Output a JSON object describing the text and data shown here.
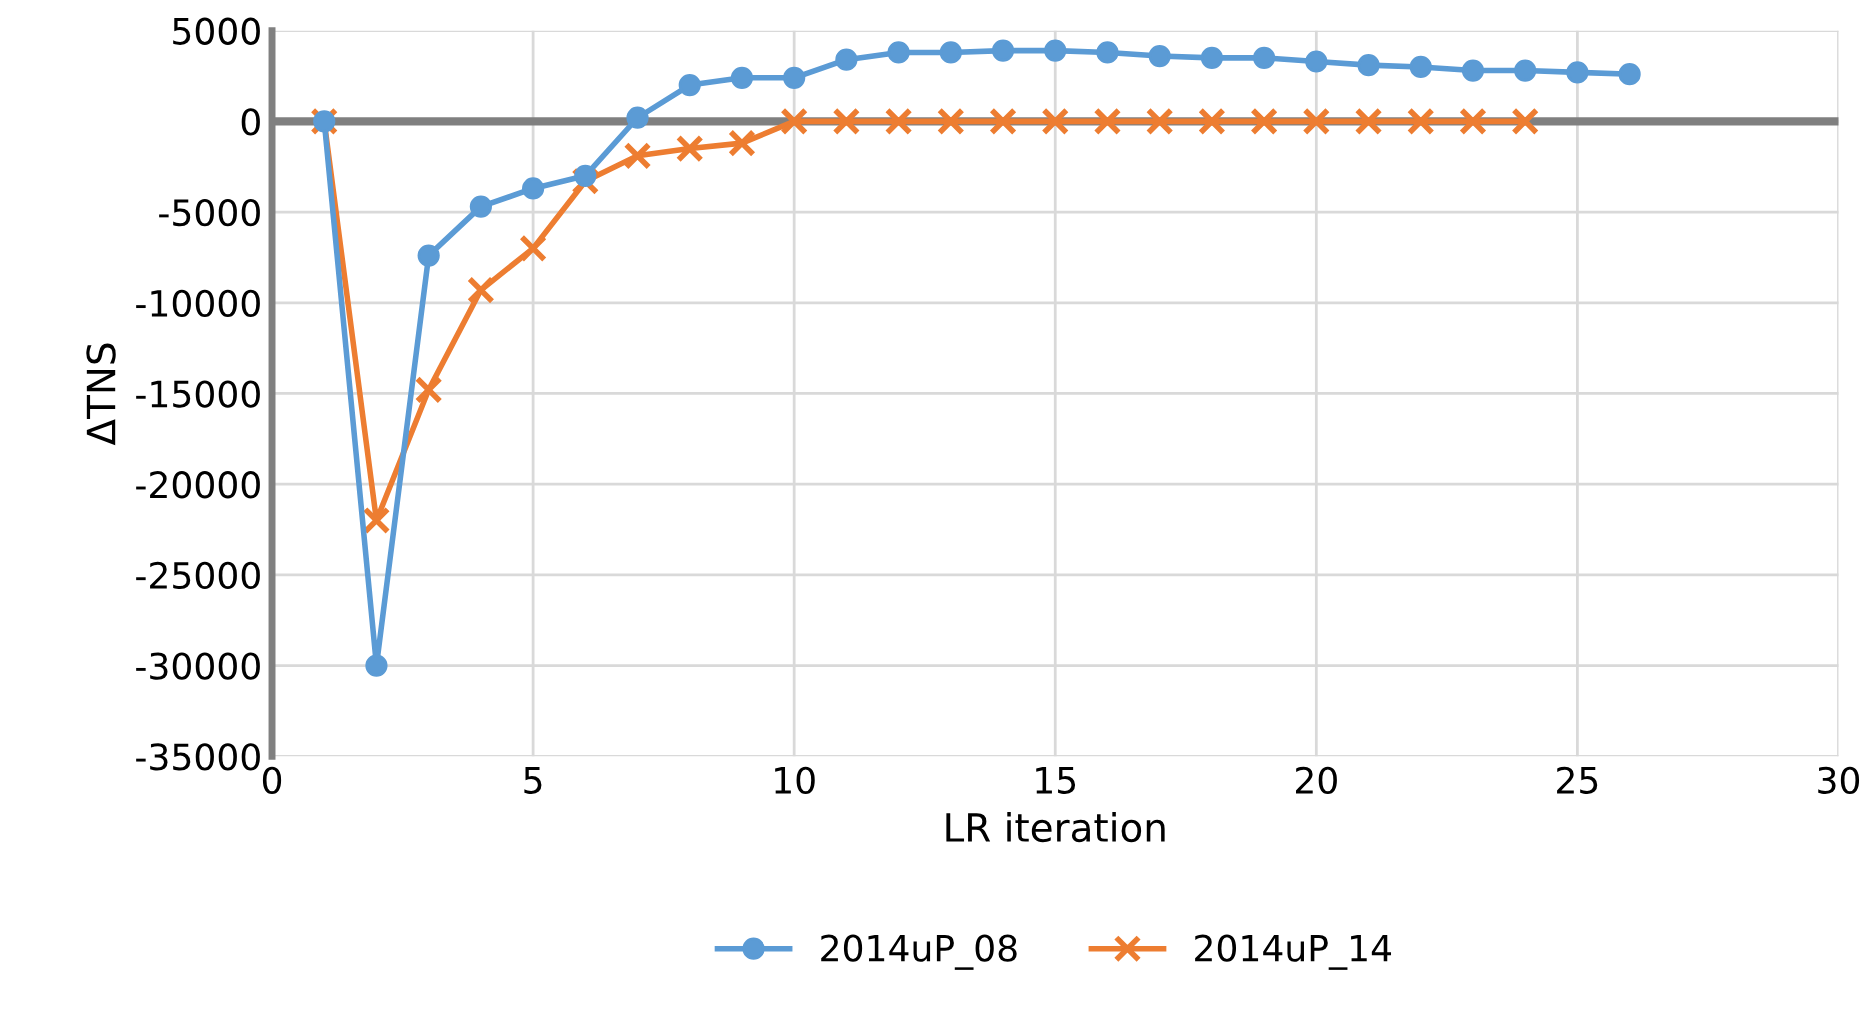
{
  "chart_data": {
    "type": "line",
    "xlabel": "LR iteration",
    "ylabel": "ΔTNS",
    "xlim": [
      0,
      30
    ],
    "xticks": [
      0,
      5,
      10,
      15,
      20,
      25,
      30
    ],
    "ylim": [
      -35000,
      5000
    ],
    "yticks": [
      -35000,
      -30000,
      -25000,
      -20000,
      -15000,
      -10000,
      -5000,
      0,
      5000
    ],
    "grid": true,
    "legend": "bottom",
    "series": [
      {
        "name": "2014uP_08",
        "color": "#5b9bd5",
        "marker": "circle",
        "x": [
          1,
          2,
          3,
          4,
          5,
          6,
          7,
          8,
          9,
          10,
          11,
          12,
          13,
          14,
          15,
          16,
          17,
          18,
          19,
          20,
          21,
          22,
          23,
          24,
          25,
          26
        ],
        "values": [
          0,
          -30000,
          -7400,
          -4700,
          -3700,
          -3000,
          200,
          2000,
          2400,
          2400,
          3400,
          3800,
          3800,
          3900,
          3900,
          3800,
          3600,
          3500,
          3500,
          3300,
          3100,
          3000,
          2800,
          2800,
          2700,
          2600
        ]
      },
      {
        "name": "2014uP_14",
        "color": "#ed7d31",
        "marker": "cross",
        "x": [
          1,
          2,
          3,
          4,
          5,
          6,
          7,
          8,
          9,
          10,
          11,
          12,
          13,
          14,
          15,
          16,
          17,
          18,
          19,
          20,
          21,
          22,
          23,
          24
        ],
        "values": [
          0,
          -22000,
          -14800,
          -9300,
          -7000,
          -3300,
          -1900,
          -1500,
          -1200,
          0,
          0,
          0,
          0,
          0,
          0,
          0,
          0,
          0,
          0,
          0,
          0,
          0,
          0,
          0
        ]
      }
    ]
  }
}
